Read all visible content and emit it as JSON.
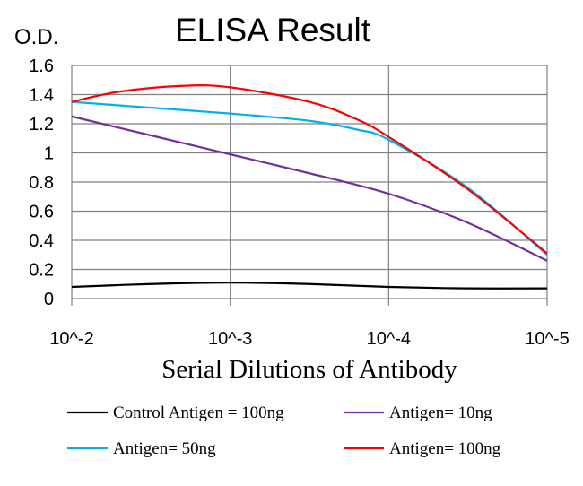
{
  "chart_data": {
    "type": "line",
    "title": "ELISA Result",
    "ylabel": "O.D.",
    "xlabel": "Serial Dilutions of Antibody",
    "categories": [
      "10^-2",
      "10^-3",
      "10^-4",
      "10^-5"
    ],
    "yticks": [
      "0",
      "0.2",
      "0.4",
      "0.6",
      "0.8",
      "1",
      "1.2",
      "1.4",
      "1.6"
    ],
    "ylim": [
      0,
      1.6
    ],
    "grid": true,
    "legend_position": "bottom",
    "series": [
      {
        "name": "Control Antigen = 100ng",
        "color": "#000000",
        "points": [
          [
            0,
            0.08
          ],
          [
            0.5,
            0.1
          ],
          [
            1,
            0.11
          ],
          [
            1.5,
            0.1
          ],
          [
            2,
            0.08
          ],
          [
            2.5,
            0.07
          ],
          [
            3,
            0.07
          ]
        ]
      },
      {
        "name": "Antigen= 10ng",
        "color": "#7030A0",
        "points": [
          [
            0,
            1.25
          ],
          [
            0.5,
            1.12
          ],
          [
            1,
            0.99
          ],
          [
            1.5,
            0.86
          ],
          [
            2,
            0.72
          ],
          [
            2.5,
            0.52
          ],
          [
            3,
            0.26
          ]
        ]
      },
      {
        "name": "Antigen= 50ng",
        "color": "#00B0F0",
        "points": [
          [
            0,
            1.35
          ],
          [
            0.5,
            1.31
          ],
          [
            1,
            1.27
          ],
          [
            1.5,
            1.22
          ],
          [
            1.8,
            1.16
          ],
          [
            2,
            1.09
          ],
          [
            2.5,
            0.76
          ],
          [
            3,
            0.3
          ]
        ]
      },
      {
        "name": "Antigen= 100ng",
        "color": "#FF0000",
        "points": [
          [
            0,
            1.35
          ],
          [
            0.3,
            1.42
          ],
          [
            0.7,
            1.46
          ],
          [
            1,
            1.45
          ],
          [
            1.5,
            1.35
          ],
          [
            1.8,
            1.23
          ],
          [
            2,
            1.11
          ],
          [
            2.5,
            0.75
          ],
          [
            3,
            0.31
          ]
        ]
      }
    ]
  }
}
